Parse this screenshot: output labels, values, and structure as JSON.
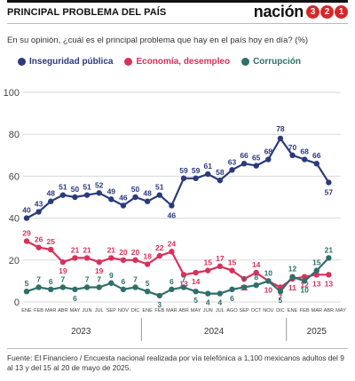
{
  "header": {
    "title": "PRINCIPAL PROBLEMA DEL PAÍS",
    "brand_word": "nación",
    "brand_digits": [
      "3",
      "2",
      "1"
    ]
  },
  "subtitle": "En su opinión, ¿cuál es el principal problema que hay en el país hoy en día?  (%)",
  "source": "Fuente: El Financiero / Encuesta nacional realizada por vía telefónica a 1,100 mexicanos adultos del 9 al 13 y del 15 al 20 de mayo de 2025.",
  "colors": {
    "inseguridad": "#2b3a7a",
    "economia": "#d8315b",
    "corrupcion": "#2f6f6a",
    "grid": "#d8d8d8",
    "axis_text": "#444444"
  },
  "chart_data": {
    "type": "line",
    "ylim": [
      0,
      100
    ],
    "yticks": [
      0,
      20,
      40,
      60,
      80,
      100
    ],
    "grid": true,
    "legend": "top",
    "x": [
      "ENE",
      "FEB",
      "MAR",
      "ABR",
      "MAY",
      "JUN",
      "JUL",
      "SEP",
      "NOV",
      "DIC",
      "ENE",
      "FEB",
      "MAR",
      "ABR",
      "MAY",
      "JUN",
      "JUL",
      "AGO",
      "SEP",
      "OCT",
      "NOV",
      "DIC",
      "ENE",
      "FEB",
      "MAR",
      "ABR",
      "MAY"
    ],
    "year_labels": [
      {
        "label": "2023",
        "start": 0,
        "end": 9
      },
      {
        "label": "2024",
        "start": 10,
        "end": 21
      },
      {
        "label": "2025",
        "start": 22,
        "end": 26
      }
    ],
    "series": [
      {
        "name": "Inseguridad pública",
        "key": "inseguridad",
        "values": [
          40,
          43,
          48,
          51,
          50,
          51,
          52,
          49,
          46,
          50,
          48,
          51,
          46,
          59,
          59,
          61,
          58,
          63,
          66,
          65,
          68,
          78,
          70,
          68,
          66,
          57,
          null
        ],
        "labels": [
          40,
          43,
          48,
          51,
          50,
          51,
          52,
          49,
          46,
          50,
          48,
          51,
          46,
          59,
          59,
          61,
          58,
          63,
          66,
          65,
          68,
          78,
          70,
          68,
          66,
          57,
          null
        ]
      },
      {
        "name": "Economía, desempleo",
        "key": "economia",
        "values": [
          29,
          26,
          25,
          19,
          21,
          21,
          19,
          21,
          20,
          20,
          18,
          22,
          24,
          13,
          14,
          15,
          17,
          15,
          11,
          14,
          10,
          7,
          11,
          12,
          13,
          13,
          null
        ],
        "labels": [
          29,
          26,
          25,
          19,
          21,
          21,
          19,
          21,
          20,
          20,
          18,
          22,
          24,
          13,
          14,
          15,
          17,
          15,
          11,
          14,
          10,
          7,
          11,
          12,
          13,
          13,
          null
        ]
      },
      {
        "name": "Corrupción",
        "key": "corrupcion",
        "values": [
          5,
          7,
          6,
          7,
          6,
          7,
          7,
          9,
          6,
          7,
          5,
          3,
          6,
          7,
          5,
          4,
          4,
          6,
          7,
          8,
          10,
          5,
          12,
          10,
          15,
          21,
          null
        ],
        "labels": [
          5,
          7,
          6,
          7,
          6,
          7,
          7,
          9,
          6,
          7,
          5,
          3,
          6,
          7,
          5,
          4,
          4,
          6,
          7,
          8,
          10,
          5,
          12,
          10,
          15,
          21,
          null
        ]
      }
    ]
  }
}
